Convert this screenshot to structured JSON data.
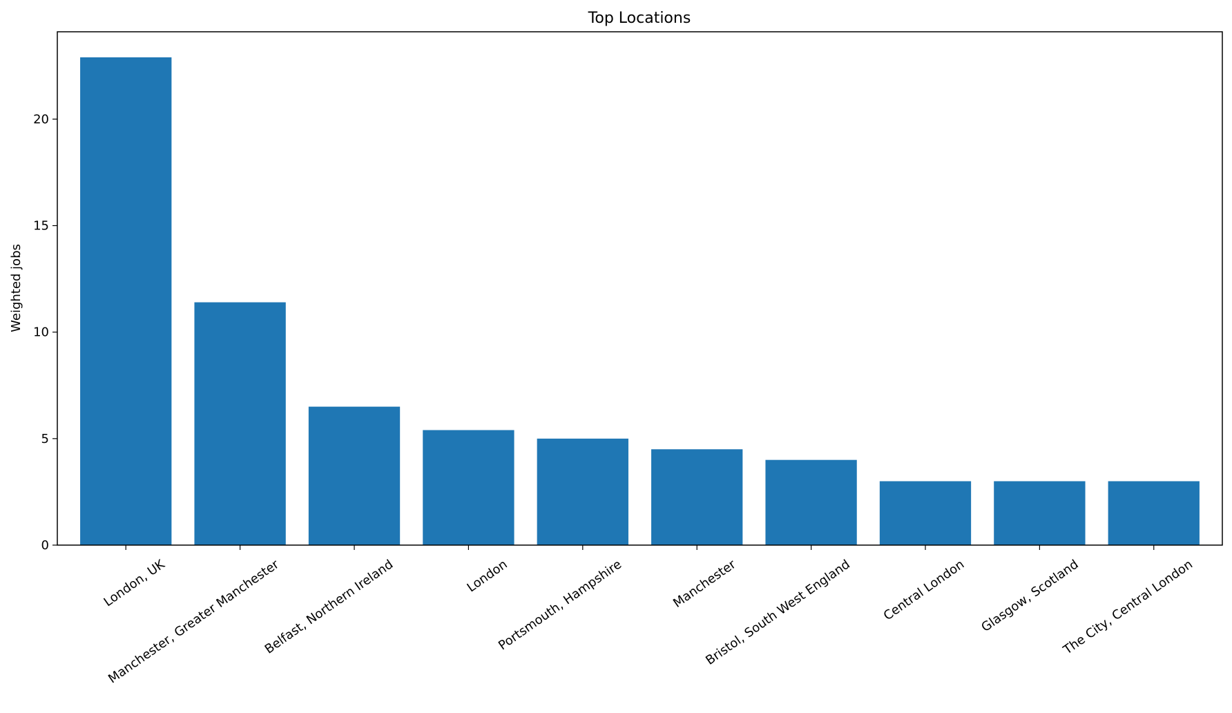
{
  "chart_data": {
    "type": "bar",
    "title": "Top Locations",
    "xlabel": "",
    "ylabel": "Weighted jobs",
    "categories": [
      "London, UK",
      "Manchester, Greater Manchester",
      "Belfast, Northern Ireland",
      "London",
      "Portsmouth, Hampshire",
      "Manchester",
      "Bristol, South West England",
      "Central London",
      "Glasgow, Scotland",
      "The City, Central London"
    ],
    "values": [
      22.9,
      11.4,
      6.5,
      5.4,
      5.0,
      4.5,
      4.0,
      3.0,
      3.0,
      3.0
    ],
    "ylim": [
      0,
      24.1
    ],
    "yticks": [
      0,
      5,
      10,
      15,
      20
    ],
    "grid": false,
    "colors": {
      "bar": "#1f77b4",
      "axis": "#000000"
    }
  }
}
